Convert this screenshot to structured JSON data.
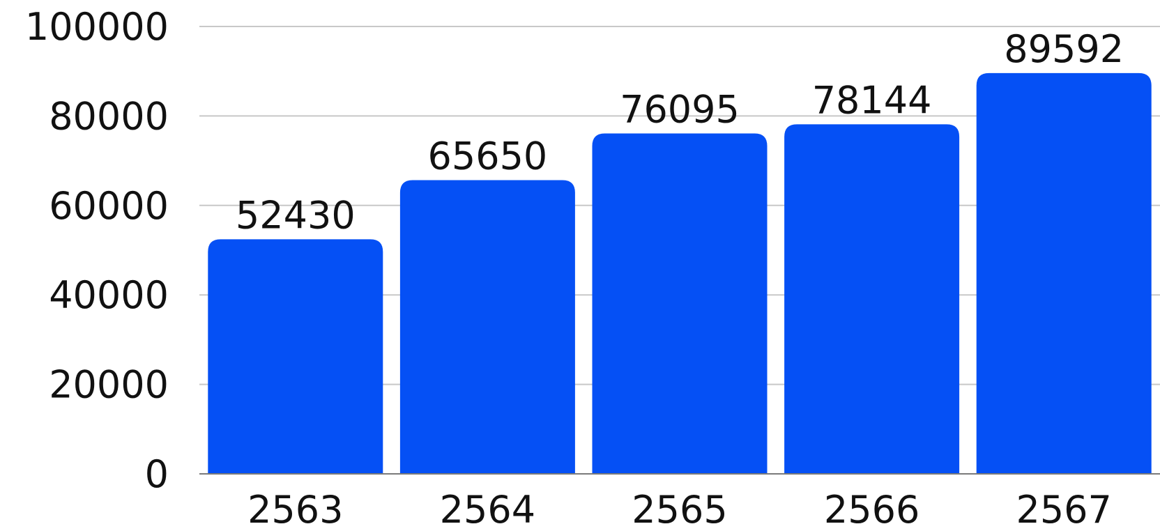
{
  "chart_data": {
    "type": "bar",
    "categories": [
      "2563",
      "2564",
      "2565",
      "2566",
      "2567"
    ],
    "values": [
      52430,
      65650,
      76095,
      78144,
      89592
    ],
    "title": "",
    "xlabel": "",
    "ylabel": "",
    "ylim": [
      0,
      100000
    ],
    "yticks": [
      "0",
      "20000",
      "40000",
      "60000",
      "80000",
      "100000"
    ],
    "grid": true,
    "legend": "none",
    "bar_color": "#0550F5",
    "data_labels": true
  }
}
